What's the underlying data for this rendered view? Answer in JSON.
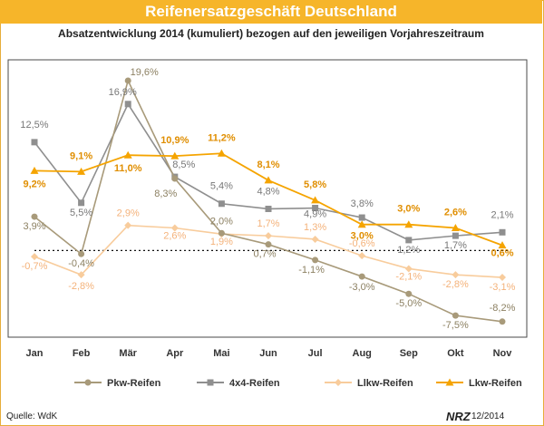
{
  "header": {
    "title": "Reifenersatzgeschäft Deutschland",
    "subtitle": "Absatzentwicklung 2014 (kumuliert) bezogen auf den jeweiligen Vorjahreszeitraum"
  },
  "footer": {
    "source": "Quelle: WdK",
    "logo_text": "NRZ",
    "date": "12/2014"
  },
  "chart_data": {
    "type": "line",
    "title": "Absatzentwicklung 2014 (kumuliert) bezogen auf den jeweiligen Vorjahreszeitraum",
    "xlabel": "",
    "ylabel": "",
    "categories": [
      "Jan",
      "Feb",
      "Mär",
      "Apr",
      "Mai",
      "Jun",
      "Jul",
      "Aug",
      "Sep",
      "Okt",
      "Nov"
    ],
    "ylim": [
      -10,
      22
    ],
    "zero_line": "dotted",
    "legend_position": "bottom",
    "series": [
      {
        "name": "Pkw-Reifen",
        "color": "#a89a7a",
        "marker": "circle",
        "values": [
          3.9,
          -0.4,
          19.6,
          8.3,
          2.0,
          0.7,
          -1.1,
          -3.0,
          -5.0,
          -7.5,
          -8.2
        ],
        "labels": [
          "3,9%",
          "-0,4%",
          "19,6%",
          "8,3%",
          "2,0%",
          "0,7%",
          "-1,1%",
          "-3,0%",
          "-5,0%",
          "-7,5%",
          "-8,2%"
        ]
      },
      {
        "name": "4x4-Reifen",
        "color": "#8f8f8f",
        "marker": "square",
        "values": [
          12.5,
          5.5,
          16.9,
          8.5,
          5.4,
          4.8,
          4.9,
          3.8,
          1.2,
          1.7,
          2.1
        ],
        "labels": [
          "12,5%",
          "5,5%",
          "16,9%",
          "8,5%",
          "5,4%",
          "4,8%",
          "4,9%",
          "3,8%",
          "1,2%",
          "1,7%",
          "2,1%"
        ]
      },
      {
        "name": "Llkw-Reifen",
        "color": "#f8cc9c",
        "marker": "diamond",
        "values": [
          -0.7,
          -2.8,
          2.9,
          2.6,
          1.9,
          1.7,
          1.3,
          -0.6,
          -2.1,
          -2.8,
          -3.1
        ],
        "labels": [
          "-0,7%",
          "-2,8%",
          "2,9%",
          "2,6%",
          "1,9%",
          "1,7%",
          "1,3%",
          "-0,6%",
          "-2,1%",
          "-2,8%",
          "-3,1%"
        ]
      },
      {
        "name": "Lkw-Reifen",
        "color": "#f5a400",
        "marker": "triangle",
        "values": [
          9.2,
          9.1,
          11.0,
          10.9,
          11.2,
          8.1,
          5.8,
          3.0,
          3.0,
          2.6,
          0.6
        ],
        "labels": [
          "9,2%",
          "9,1%",
          "11,0%",
          "10,9%",
          "11,2%",
          "8,1%",
          "5,8%",
          "3,0%",
          "3,0%",
          "2,6%",
          "0,6%"
        ]
      }
    ]
  }
}
